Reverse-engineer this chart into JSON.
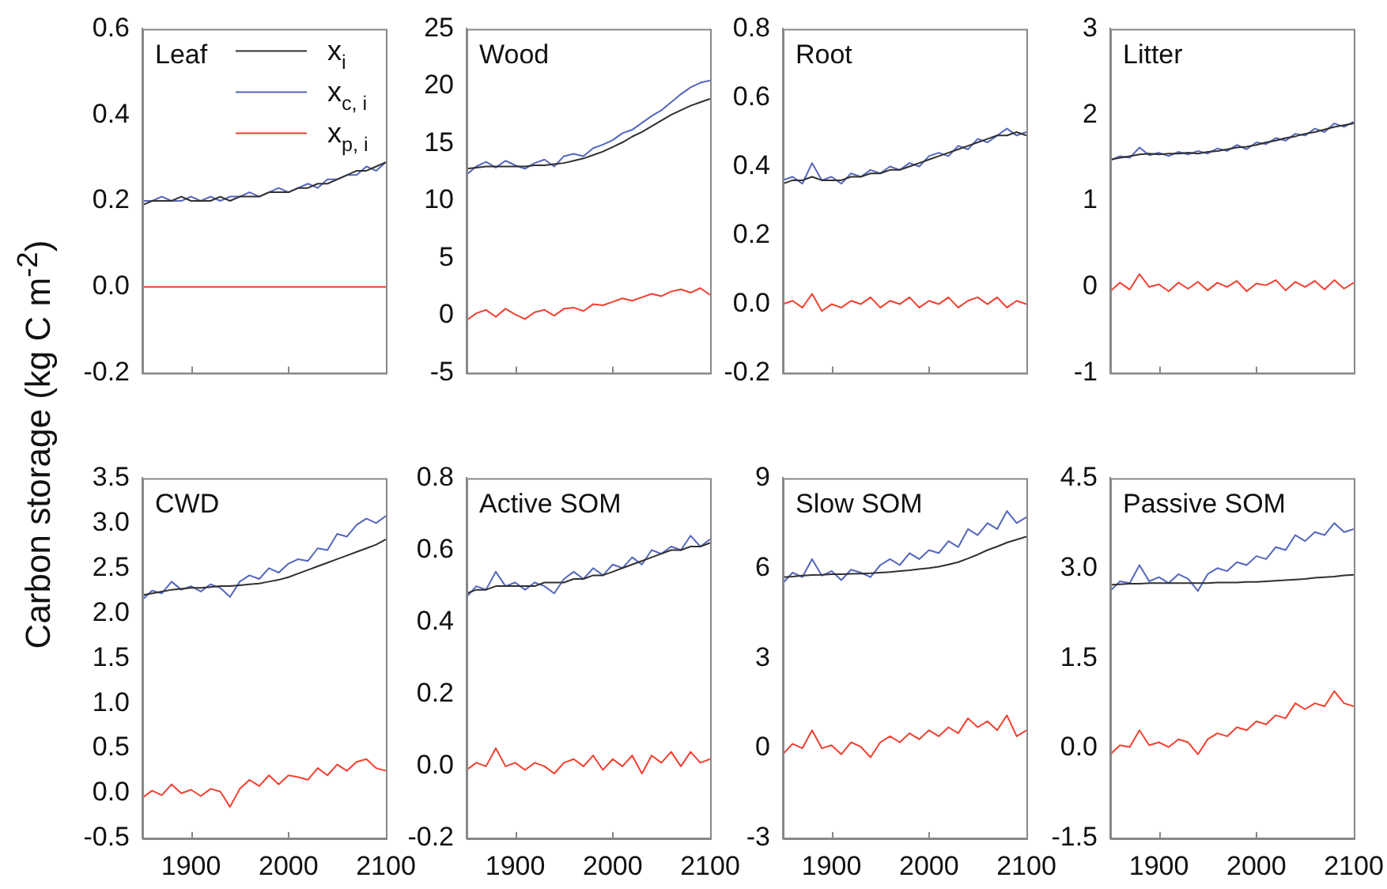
{
  "chart_data": [
    {
      "type": "line",
      "title": "Leaf",
      "ylabel": "Carbon storage (kg C m$^{-2}$)",
      "legend": "top right",
      "tick_labels": "y",
      "x": [
        1850,
        1860,
        1870,
        1880,
        1890,
        1900,
        1910,
        1920,
        1930,
        1940,
        1950,
        1960,
        1970,
        1980,
        1990,
        2000,
        2010,
        2020,
        2030,
        2040,
        2050,
        2060,
        2070,
        2080,
        2090,
        2100
      ],
      "xlim": [
        1850,
        2100
      ],
      "xticks": [
        1900,
        2000,
        2100
      ],
      "ylim": [
        -0.2,
        0.6
      ],
      "yticks": [
        -0.2,
        {
          "value": 0,
          "label": "0.0"
        },
        0.2,
        0.4,
        0.6
      ],
      "series": [
        {
          "name": "x$_{i}$",
          "color": "#303030",
          "values": [
            0.19,
            0.2,
            0.2,
            0.2,
            0.21,
            0.2,
            0.2,
            0.2,
            0.21,
            0.2,
            0.21,
            0.21,
            0.21,
            0.22,
            0.22,
            0.22,
            0.23,
            0.23,
            0.24,
            0.24,
            0.25,
            0.26,
            0.27,
            0.27,
            0.28,
            0.29
          ]
        },
        {
          "name": "x$_{c, i}$",
          "color": "#5566bb",
          "values": [
            0.2,
            0.2,
            0.21,
            0.2,
            0.2,
            0.21,
            0.2,
            0.21,
            0.2,
            0.21,
            0.21,
            0.22,
            0.21,
            0.22,
            0.23,
            0.22,
            0.23,
            0.24,
            0.23,
            0.25,
            0.25,
            0.26,
            0.26,
            0.28,
            0.27,
            0.29
          ]
        },
        {
          "name": "x$_{p, i}$",
          "color": "#f04030",
          "values": [
            0,
            0,
            0,
            0,
            0,
            0,
            0,
            0,
            0,
            0,
            0,
            0,
            0,
            0,
            0,
            0,
            0,
            0,
            0,
            0,
            0,
            0,
            0,
            0,
            0,
            0
          ]
        }
      ]
    },
    {
      "type": "line",
      "title": "Wood",
      "tick_labels": "y",
      "x": [
        1850,
        1860,
        1870,
        1880,
        1890,
        1900,
        1910,
        1920,
        1930,
        1940,
        1950,
        1960,
        1970,
        1980,
        1990,
        2000,
        2010,
        2020,
        2030,
        2040,
        2050,
        2060,
        2070,
        2080,
        2090,
        2100
      ],
      "xlim": [
        1850,
        2100
      ],
      "xticks": [
        1900,
        2000,
        2100
      ],
      "ylim": [
        -5,
        25
      ],
      "yticks": [
        -5,
        0,
        5,
        10,
        15,
        20,
        25
      ],
      "series": [
        {
          "color": "#303030",
          "values": [
            12.8,
            12.9,
            13.0,
            13.0,
            13.0,
            13.0,
            13.0,
            13.1,
            13.1,
            13.2,
            13.3,
            13.5,
            13.7,
            14.0,
            14.3,
            14.7,
            15.1,
            15.6,
            16.0,
            16.5,
            17.0,
            17.5,
            17.9,
            18.3,
            18.6,
            18.9
          ]
        },
        {
          "color": "#5566bb",
          "values": [
            12.3,
            13.0,
            13.4,
            12.9,
            13.5,
            13.1,
            12.8,
            13.3,
            13.6,
            13.0,
            13.9,
            14.1,
            13.9,
            14.6,
            14.9,
            15.3,
            15.9,
            16.2,
            16.8,
            17.4,
            17.9,
            18.6,
            19.3,
            19.9,
            20.3,
            20.5
          ]
        },
        {
          "color": "#f04030",
          "values": [
            -0.4,
            0.2,
            0.5,
            -0.1,
            0.6,
            0.1,
            -0.3,
            0.3,
            0.5,
            0.0,
            0.6,
            0.7,
            0.4,
            1.0,
            0.9,
            1.2,
            1.5,
            1.3,
            1.6,
            1.9,
            1.7,
            2.1,
            2.3,
            2.0,
            2.4,
            1.8
          ]
        }
      ]
    },
    {
      "type": "line",
      "title": "Root",
      "tick_labels": "y",
      "x": [
        1850,
        1860,
        1870,
        1880,
        1890,
        1900,
        1910,
        1920,
        1930,
        1940,
        1950,
        1960,
        1970,
        1980,
        1990,
        2000,
        2010,
        2020,
        2030,
        2040,
        2050,
        2060,
        2070,
        2080,
        2090,
        2100
      ],
      "xlim": [
        1850,
        2100
      ],
      "xticks": [
        1900,
        2000,
        2100
      ],
      "ylim": [
        -0.2,
        0.8
      ],
      "yticks": [
        -0.2,
        {
          "value": 0,
          "label": "0.0"
        },
        0.2,
        0.4,
        0.6,
        0.8
      ],
      "series": [
        {
          "color": "#303030",
          "values": [
            0.35,
            0.36,
            0.36,
            0.37,
            0.36,
            0.36,
            0.36,
            0.37,
            0.37,
            0.38,
            0.38,
            0.39,
            0.39,
            0.4,
            0.41,
            0.42,
            0.43,
            0.44,
            0.45,
            0.46,
            0.47,
            0.48,
            0.49,
            0.49,
            0.5,
            0.49
          ]
        },
        {
          "color": "#5566bb",
          "values": [
            0.36,
            0.37,
            0.35,
            0.41,
            0.36,
            0.37,
            0.35,
            0.38,
            0.37,
            0.39,
            0.38,
            0.4,
            0.39,
            0.41,
            0.4,
            0.43,
            0.44,
            0.43,
            0.46,
            0.45,
            0.48,
            0.47,
            0.49,
            0.51,
            0.49,
            0.5
          ]
        },
        {
          "color": "#f04030",
          "values": [
            0.0,
            0.01,
            -0.01,
            0.03,
            -0.02,
            0.0,
            -0.01,
            0.01,
            0.0,
            0.02,
            -0.01,
            0.01,
            0.0,
            0.02,
            -0.01,
            0.01,
            0.0,
            0.02,
            -0.01,
            0.01,
            0.02,
            0.0,
            0.02,
            -0.01,
            0.01,
            0.0
          ]
        }
      ]
    },
    {
      "type": "line",
      "title": "Litter",
      "tick_labels": "y",
      "x": [
        1850,
        1860,
        1870,
        1880,
        1890,
        1900,
        1910,
        1920,
        1930,
        1940,
        1950,
        1960,
        1970,
        1980,
        1990,
        2000,
        2010,
        2020,
        2030,
        2040,
        2050,
        2060,
        2070,
        2080,
        2090,
        2100
      ],
      "xlim": [
        1850,
        2100
      ],
      "xticks": [
        1900,
        2000,
        2100
      ],
      "ylim": [
        -1,
        3
      ],
      "yticks": [
        -1,
        0,
        1,
        2,
        3
      ],
      "series": [
        {
          "color": "#303030",
          "values": [
            1.48,
            1.5,
            1.52,
            1.54,
            1.55,
            1.54,
            1.55,
            1.55,
            1.56,
            1.55,
            1.57,
            1.58,
            1.6,
            1.62,
            1.63,
            1.65,
            1.68,
            1.7,
            1.73,
            1.75,
            1.78,
            1.8,
            1.83,
            1.86,
            1.88,
            1.9
          ]
        },
        {
          "color": "#5566bb",
          "values": [
            1.47,
            1.52,
            1.5,
            1.62,
            1.53,
            1.56,
            1.52,
            1.57,
            1.54,
            1.58,
            1.55,
            1.61,
            1.58,
            1.65,
            1.6,
            1.68,
            1.66,
            1.73,
            1.7,
            1.78,
            1.76,
            1.84,
            1.8,
            1.9,
            1.86,
            1.92
          ]
        },
        {
          "color": "#f04030",
          "values": [
            -0.05,
            0.05,
            -0.03,
            0.15,
            0.0,
            0.03,
            -0.05,
            0.05,
            -0.02,
            0.06,
            -0.04,
            0.05,
            0.0,
            0.07,
            -0.05,
            0.04,
            0.02,
            0.08,
            -0.04,
            0.06,
            0.0,
            0.07,
            -0.03,
            0.08,
            -0.02,
            0.05
          ]
        }
      ]
    },
    {
      "type": "line",
      "title": "CWD",
      "x": [
        1850,
        1860,
        1870,
        1880,
        1890,
        1900,
        1910,
        1920,
        1930,
        1940,
        1950,
        1960,
        1970,
        1980,
        1990,
        2000,
        2010,
        2020,
        2030,
        2040,
        2050,
        2060,
        2070,
        2080,
        2090,
        2100
      ],
      "xlim": [
        1850,
        2100
      ],
      "xticks": [
        1900,
        2000,
        2100
      ],
      "ylim": [
        -0.5,
        3.5
      ],
      "yticks": [
        -0.5,
        {
          "value": 0,
          "label": "0.0"
        },
        0.5,
        {
          "value": 1,
          "label": "1.0"
        },
        1.5,
        {
          "value": 2,
          "label": "2.0"
        },
        2.5,
        {
          "value": 3,
          "label": "3.0"
        },
        3.5
      ],
      "series": [
        {
          "color": "#303030",
          "values": [
            2.2,
            2.22,
            2.24,
            2.26,
            2.27,
            2.28,
            2.28,
            2.29,
            2.3,
            2.3,
            2.31,
            2.32,
            2.33,
            2.35,
            2.37,
            2.4,
            2.44,
            2.48,
            2.52,
            2.56,
            2.6,
            2.64,
            2.68,
            2.72,
            2.76,
            2.82
          ]
        },
        {
          "color": "#5566bb",
          "values": [
            2.15,
            2.25,
            2.22,
            2.35,
            2.26,
            2.3,
            2.24,
            2.32,
            2.28,
            2.18,
            2.35,
            2.42,
            2.38,
            2.5,
            2.45,
            2.55,
            2.6,
            2.58,
            2.72,
            2.7,
            2.88,
            2.85,
            2.98,
            3.05,
            3.0,
            3.08
          ]
        },
        {
          "color": "#f04030",
          "values": [
            -0.05,
            0.03,
            -0.02,
            0.1,
            0.0,
            0.04,
            -0.03,
            0.05,
            0.02,
            -0.15,
            0.05,
            0.15,
            0.08,
            0.2,
            0.1,
            0.2,
            0.18,
            0.15,
            0.28,
            0.2,
            0.32,
            0.25,
            0.35,
            0.38,
            0.28,
            0.25
          ]
        }
      ]
    },
    {
      "type": "line",
      "title": "Active SOM",
      "x": [
        1850,
        1860,
        1870,
        1880,
        1890,
        1900,
        1910,
        1920,
        1930,
        1940,
        1950,
        1960,
        1970,
        1980,
        1990,
        2000,
        2010,
        2020,
        2030,
        2040,
        2050,
        2060,
        2070,
        2080,
        2090,
        2100
      ],
      "xlim": [
        1850,
        2100
      ],
      "xticks": [
        1900,
        2000,
        2100
      ],
      "ylim": [
        -0.2,
        0.8
      ],
      "yticks": [
        -0.2,
        {
          "value": 0,
          "label": "0.0"
        },
        0.2,
        0.4,
        0.6,
        0.8
      ],
      "series": [
        {
          "color": "#303030",
          "values": [
            0.48,
            0.49,
            0.49,
            0.5,
            0.5,
            0.5,
            0.5,
            0.5,
            0.51,
            0.51,
            0.51,
            0.52,
            0.52,
            0.53,
            0.53,
            0.54,
            0.55,
            0.56,
            0.57,
            0.58,
            0.59,
            0.6,
            0.6,
            0.61,
            0.61,
            0.62
          ]
        },
        {
          "color": "#5566bb",
          "values": [
            0.47,
            0.5,
            0.49,
            0.54,
            0.5,
            0.51,
            0.49,
            0.51,
            0.5,
            0.48,
            0.52,
            0.54,
            0.52,
            0.55,
            0.53,
            0.56,
            0.55,
            0.58,
            0.56,
            0.6,
            0.59,
            0.61,
            0.6,
            0.64,
            0.61,
            0.63
          ]
        },
        {
          "color": "#f04030",
          "values": [
            -0.01,
            0.01,
            0.0,
            0.05,
            0.0,
            0.01,
            -0.01,
            0.01,
            0.0,
            -0.02,
            0.01,
            0.02,
            0.0,
            0.03,
            -0.01,
            0.02,
            0.0,
            0.03,
            -0.02,
            0.03,
            0.01,
            0.04,
            0.0,
            0.04,
            0.01,
            0.02
          ]
        }
      ]
    },
    {
      "type": "line",
      "title": "Slow SOM",
      "x": [
        1850,
        1860,
        1870,
        1880,
        1890,
        1900,
        1910,
        1920,
        1930,
        1940,
        1950,
        1960,
        1970,
        1980,
        1990,
        2000,
        2010,
        2020,
        2030,
        2040,
        2050,
        2060,
        2070,
        2080,
        2090,
        2100
      ],
      "xlim": [
        1850,
        2100
      ],
      "xticks": [
        1900,
        2000,
        2100
      ],
      "ylim": [
        -3,
        9
      ],
      "yticks": [
        -3,
        0,
        3,
        6,
        9
      ],
      "series": [
        {
          "color": "#303030",
          "values": [
            5.7,
            5.72,
            5.75,
            5.77,
            5.78,
            5.8,
            5.8,
            5.81,
            5.82,
            5.83,
            5.85,
            5.87,
            5.9,
            5.93,
            5.97,
            6.0,
            6.05,
            6.12,
            6.2,
            6.32,
            6.45,
            6.6,
            6.72,
            6.85,
            6.95,
            7.05
          ]
        },
        {
          "color": "#5566bb",
          "values": [
            5.5,
            5.85,
            5.7,
            6.3,
            5.75,
            5.9,
            5.6,
            5.95,
            5.85,
            5.7,
            6.1,
            6.3,
            6.1,
            6.5,
            6.3,
            6.6,
            6.5,
            6.9,
            6.7,
            7.3,
            7.1,
            7.5,
            7.3,
            7.9,
            7.5,
            7.7
          ]
        },
        {
          "color": "#f04030",
          "values": [
            -0.2,
            0.15,
            0.0,
            0.6,
            0.0,
            0.1,
            -0.2,
            0.2,
            0.05,
            -0.3,
            0.2,
            0.4,
            0.2,
            0.5,
            0.3,
            0.6,
            0.4,
            0.7,
            0.5,
            1.0,
            0.7,
            0.9,
            0.6,
            1.1,
            0.4,
            0.6
          ]
        }
      ]
    },
    {
      "type": "line",
      "title": "Passive SOM",
      "x": [
        1850,
        1860,
        1870,
        1880,
        1890,
        1900,
        1910,
        1920,
        1930,
        1940,
        1950,
        1960,
        1970,
        1980,
        1990,
        2000,
        2010,
        2020,
        2030,
        2040,
        2050,
        2060,
        2070,
        2080,
        2090,
        2100
      ],
      "xlim": [
        1850,
        2100
      ],
      "xticks": [
        1900,
        2000,
        2100
      ],
      "ylim": [
        -1.5,
        4.5
      ],
      "yticks": [
        -1.5,
        {
          "value": 0,
          "label": "0.0"
        },
        1.5,
        {
          "value": 3,
          "label": "3.0"
        },
        4.5
      ],
      "series": [
        {
          "color": "#303030",
          "values": [
            2.72,
            2.73,
            2.74,
            2.74,
            2.75,
            2.75,
            2.75,
            2.75,
            2.75,
            2.75,
            2.75,
            2.76,
            2.76,
            2.76,
            2.77,
            2.77,
            2.78,
            2.79,
            2.8,
            2.81,
            2.82,
            2.84,
            2.85,
            2.86,
            2.88,
            2.89
          ]
        },
        {
          "color": "#5566bb",
          "values": [
            2.62,
            2.78,
            2.75,
            3.05,
            2.78,
            2.85,
            2.75,
            2.9,
            2.82,
            2.62,
            2.9,
            3.0,
            2.95,
            3.1,
            3.05,
            3.2,
            3.15,
            3.35,
            3.3,
            3.55,
            3.45,
            3.6,
            3.55,
            3.75,
            3.6,
            3.65
          ]
        },
        {
          "color": "#f04030",
          "values": [
            -0.1,
            0.05,
            0.02,
            0.3,
            0.05,
            0.1,
            0.02,
            0.15,
            0.1,
            -0.1,
            0.15,
            0.25,
            0.2,
            0.35,
            0.3,
            0.45,
            0.4,
            0.55,
            0.5,
            0.75,
            0.65,
            0.75,
            0.7,
            0.95,
            0.75,
            0.7
          ]
        }
      ]
    }
  ]
}
